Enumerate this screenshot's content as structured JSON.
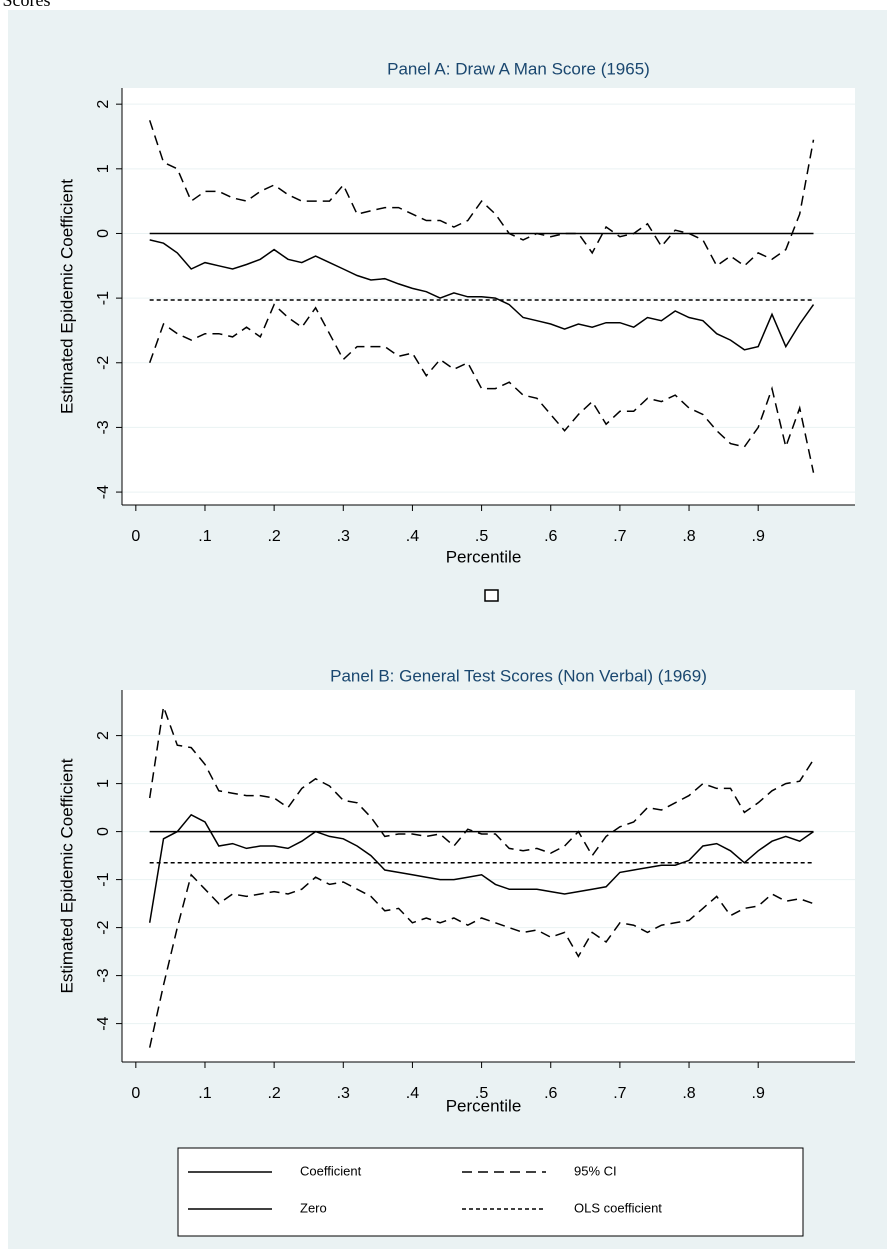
{
  "caption": "st Scores",
  "chart_data": [
    {
      "type": "line",
      "title": "Panel A: Draw A Man Score (1965)",
      "xlabel": "Percentile",
      "ylabel": "Estimated Epidemic Coefficient",
      "color": "#000000",
      "title_color": "#1a476f",
      "grid": true,
      "xlim": [
        -0.02,
        1.04
      ],
      "ylim": [
        -4.2,
        2.25
      ],
      "xticks": [
        0,
        {
          "value": 0.1,
          "label": ".1"
        },
        {
          "value": 0.2,
          "label": ".2"
        },
        {
          "value": 0.3,
          "label": ".3"
        },
        {
          "value": 0.4,
          "label": ".4"
        },
        {
          "value": 0.5,
          "label": ".5"
        },
        {
          "value": 0.6,
          "label": ".6"
        },
        {
          "value": 0.7,
          "label": ".7"
        },
        {
          "value": 0.8,
          "label": ".8"
        },
        {
          "value": 0.9,
          "label": ".9"
        }
      ],
      "yticks": [
        2,
        1,
        0,
        -1,
        -2,
        -3,
        -4
      ],
      "x": [
        0.02,
        0.04,
        0.06,
        0.08,
        0.1,
        0.12,
        0.14,
        0.16,
        0.18,
        0.2,
        0.22,
        0.24,
        0.26,
        0.28,
        0.3,
        0.32,
        0.34,
        0.36,
        0.38,
        0.4,
        0.42,
        0.44,
        0.46,
        0.48,
        0.5,
        0.52,
        0.54,
        0.56,
        0.58,
        0.6,
        0.62,
        0.64,
        0.66,
        0.68,
        0.7,
        0.72,
        0.74,
        0.76,
        0.78,
        0.8,
        0.82,
        0.84,
        0.86,
        0.88,
        0.9,
        0.92,
        0.94,
        0.96,
        0.98
      ],
      "series": [
        {
          "style": "solid",
          "values": [
            -0.1,
            -0.15,
            -0.3,
            -0.55,
            -0.45,
            -0.5,
            -0.55,
            -0.48,
            -0.4,
            -0.25,
            -0.4,
            -0.45,
            -0.35,
            -0.45,
            -0.55,
            -0.65,
            -0.72,
            -0.7,
            -0.78,
            -0.85,
            -0.9,
            -1.0,
            -0.92,
            -0.98,
            -0.98,
            -1.0,
            -1.1,
            -1.3,
            -1.35,
            -1.4,
            -1.48,
            -1.4,
            -1.45,
            -1.38,
            -1.38,
            -1.45,
            -1.3,
            -1.35,
            -1.2,
            -1.3,
            -1.35,
            -1.55,
            -1.65,
            -1.8,
            -1.75,
            -1.25,
            -1.75,
            -1.4,
            -1.1
          ]
        },
        {
          "style": "dash",
          "upper": [
            1.75,
            1.1,
            1.0,
            0.5,
            0.65,
            0.65,
            0.55,
            0.5,
            0.65,
            0.75,
            0.6,
            0.5,
            0.5,
            0.5,
            0.75,
            0.3,
            0.35,
            0.4,
            0.4,
            0.3,
            0.2,
            0.2,
            0.1,
            0.2,
            0.5,
            0.3,
            0.0,
            -0.1,
            0.0,
            -0.05,
            0.0,
            0.0,
            -0.3,
            0.1,
            -0.05,
            0.0,
            0.15,
            -0.2,
            0.05,
            0.0,
            -0.1,
            -0.5,
            -0.35,
            -0.5,
            -0.3,
            -0.4,
            -0.25,
            0.3,
            1.45
          ],
          "lower": [
            -2.0,
            -1.4,
            -1.55,
            -1.65,
            -1.55,
            -1.55,
            -1.6,
            -1.45,
            -1.6,
            -1.1,
            -1.3,
            -1.45,
            -1.15,
            -1.55,
            -1.95,
            -1.75,
            -1.75,
            -1.75,
            -1.9,
            -1.85,
            -2.2,
            -1.95,
            -2.1,
            -2.0,
            -2.4,
            -2.4,
            -2.3,
            -2.5,
            -2.55,
            -2.8,
            -3.05,
            -2.8,
            -2.6,
            -2.95,
            -2.75,
            -2.75,
            -2.55,
            -2.6,
            -2.5,
            -2.7,
            -2.8,
            -3.05,
            -3.25,
            -3.3,
            -3.0,
            -2.4,
            -3.3,
            -2.7,
            -3.7
          ]
        }
      ],
      "hlines": [
        {
          "value": 0,
          "style": "solid"
        },
        {
          "value": -1.03,
          "style": "dot"
        }
      ]
    },
    {
      "type": "line",
      "title": "Panel B: General Test Scores (Non Verbal) (1969)",
      "xlabel": "Percentile",
      "ylabel": "Estimated Epidemic Coefficient",
      "color": "#000000",
      "title_color": "#1a476f",
      "grid": true,
      "legend": "bottom",
      "xlim": [
        -0.02,
        1.04
      ],
      "ylim": [
        -4.8,
        2.95
      ],
      "xticks": [
        0,
        {
          "value": 0.1,
          "label": ".1"
        },
        {
          "value": 0.2,
          "label": ".2"
        },
        {
          "value": 0.3,
          "label": ".3"
        },
        {
          "value": 0.4,
          "label": ".4"
        },
        {
          "value": 0.5,
          "label": ".5"
        },
        {
          "value": 0.6,
          "label": ".6"
        },
        {
          "value": 0.7,
          "label": ".7"
        },
        {
          "value": 0.8,
          "label": ".8"
        },
        {
          "value": 0.9,
          "label": ".9"
        }
      ],
      "yticks": [
        2,
        1,
        0,
        -1,
        -2,
        -3,
        -4
      ],
      "x": [
        0.02,
        0.04,
        0.06,
        0.08,
        0.1,
        0.12,
        0.14,
        0.16,
        0.18,
        0.2,
        0.22,
        0.24,
        0.26,
        0.28,
        0.3,
        0.32,
        0.34,
        0.36,
        0.38,
        0.4,
        0.42,
        0.44,
        0.46,
        0.48,
        0.5,
        0.52,
        0.54,
        0.56,
        0.58,
        0.6,
        0.62,
        0.64,
        0.66,
        0.68,
        0.7,
        0.72,
        0.74,
        0.76,
        0.78,
        0.8,
        0.82,
        0.84,
        0.86,
        0.88,
        0.9,
        0.92,
        0.94,
        0.96,
        0.98
      ],
      "series": [
        {
          "name": "Coefficient",
          "style": "solid",
          "values": [
            -1.9,
            -0.15,
            0.0,
            0.35,
            0.2,
            -0.3,
            -0.25,
            -0.35,
            -0.3,
            -0.3,
            -0.35,
            -0.2,
            0.0,
            -0.1,
            -0.15,
            -0.3,
            -0.5,
            -0.8,
            -0.85,
            -0.9,
            -0.95,
            -1.0,
            -1.0,
            -0.95,
            -0.9,
            -1.1,
            -1.2,
            -1.2,
            -1.2,
            -1.25,
            -1.3,
            -1.25,
            -1.2,
            -1.15,
            -0.85,
            -0.8,
            -0.75,
            -0.7,
            -0.7,
            -0.6,
            -0.3,
            -0.25,
            -0.4,
            -0.65,
            -0.4,
            -0.2,
            -0.1,
            -0.2,
            0.0
          ]
        },
        {
          "name": "95% CI",
          "style": "dash",
          "upper": [
            0.7,
            2.6,
            1.8,
            1.75,
            1.4,
            0.85,
            0.8,
            0.75,
            0.75,
            0.7,
            0.5,
            0.9,
            1.1,
            0.95,
            0.65,
            0.6,
            0.3,
            -0.1,
            -0.05,
            -0.05,
            -0.1,
            -0.05,
            -0.3,
            0.05,
            -0.05,
            -0.05,
            -0.35,
            -0.4,
            -0.35,
            -0.45,
            -0.3,
            0.0,
            -0.5,
            -0.1,
            0.1,
            0.2,
            0.5,
            0.45,
            0.6,
            0.75,
            1.0,
            0.9,
            0.9,
            0.4,
            0.6,
            0.85,
            1.0,
            1.05,
            1.5
          ],
          "lower": [
            -4.5,
            -3.2,
            -2.0,
            -0.9,
            -1.2,
            -1.5,
            -1.3,
            -1.35,
            -1.3,
            -1.25,
            -1.3,
            -1.2,
            -0.95,
            -1.1,
            -1.05,
            -1.2,
            -1.35,
            -1.65,
            -1.6,
            -1.9,
            -1.8,
            -1.9,
            -1.8,
            -1.95,
            -1.8,
            -1.9,
            -2.0,
            -2.1,
            -2.05,
            -2.2,
            -2.1,
            -2.6,
            -2.1,
            -2.3,
            -1.9,
            -1.95,
            -2.1,
            -1.95,
            -1.9,
            -1.85,
            -1.6,
            -1.35,
            -1.75,
            -1.6,
            -1.55,
            -1.3,
            -1.45,
            -1.4,
            -1.5
          ]
        }
      ],
      "hlines": [
        {
          "name": "Zero",
          "value": 0,
          "style": "solid"
        },
        {
          "name": "OLS coefficient",
          "value": -0.65,
          "style": "dot"
        }
      ]
    }
  ]
}
